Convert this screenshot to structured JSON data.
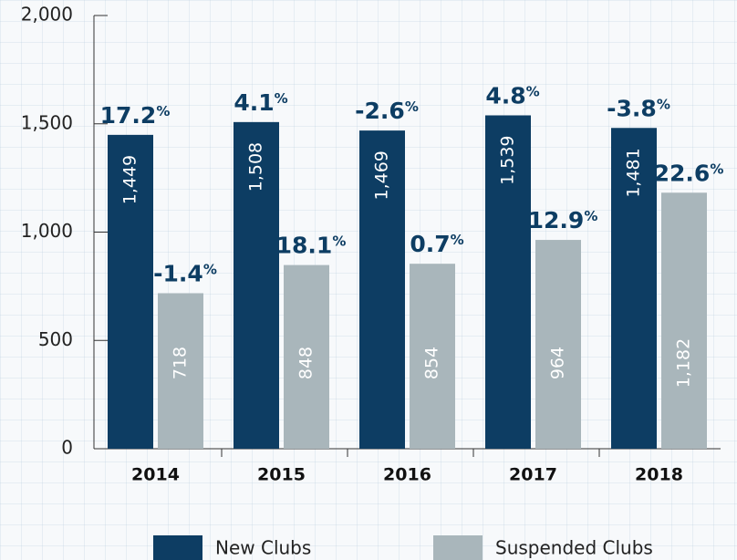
{
  "chart_data": {
    "type": "bar",
    "categories": [
      "2014",
      "2015",
      "2016",
      "2017",
      "2018"
    ],
    "series": [
      {
        "name": "New Clubs",
        "color": "#0d3d63",
        "values": [
          1449,
          1508,
          1469,
          1539,
          1481
        ],
        "value_labels": [
          "1,449",
          "1,508",
          "1,469",
          "1,539",
          "1,481"
        ],
        "change_labels": [
          "17.2%",
          "4.1%",
          "-2.6%",
          "4.8%",
          "-3.8%"
        ]
      },
      {
        "name": "Suspended Clubs",
        "color": "#a9b6bb",
        "values": [
          718,
          848,
          854,
          964,
          1182
        ],
        "value_labels": [
          "718",
          "848",
          "854",
          "964",
          "1,182"
        ],
        "change_labels": [
          "-1.4%",
          "18.1%",
          "0.7%",
          "12.9%",
          "22.6%"
        ]
      }
    ],
    "ylim": [
      0,
      2000
    ],
    "yticks": [
      0,
      500,
      {
        "value": 1000,
        "label": "1,000"
      },
      {
        "value": 1500,
        "label": "1,500"
      },
      {
        "value": 2000,
        "label": "2,000"
      }
    ]
  }
}
